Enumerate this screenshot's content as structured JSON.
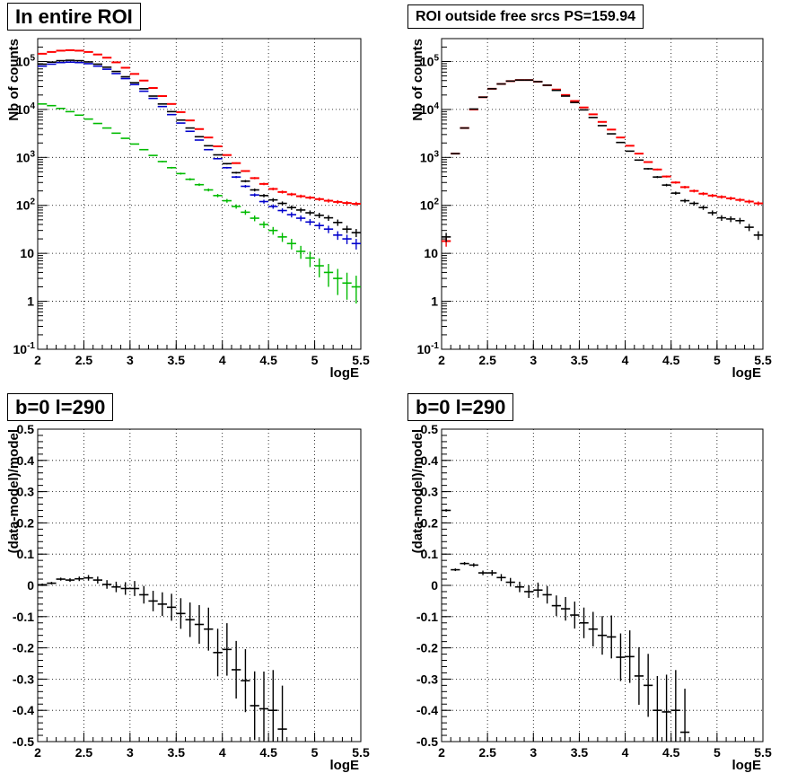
{
  "panels": [
    {
      "title": "In entire ROI",
      "xlabel": "logE",
      "ylabel": "Nb of counts"
    },
    {
      "title": "ROI outside free srcs PS=159.94",
      "xlabel": "logE",
      "ylabel": "Nb of counts"
    },
    {
      "title": "b=0 l=290",
      "xlabel": "logE",
      "ylabel": "(data-model)/model"
    },
    {
      "title": "b=0 l=290",
      "xlabel": "logE",
      "ylabel": "(data-model)/model"
    }
  ],
  "chart_data": [
    {
      "type": "scatter",
      "title": "In entire ROI",
      "xlabel": "logE",
      "ylabel": "Nb of counts",
      "xlim": [
        2,
        5.5
      ],
      "ylim": [
        0.1,
        300000
      ],
      "yscale": "log",
      "grid": true,
      "x_ticks": [
        "2",
        "2.5",
        "3",
        "3.5",
        "4",
        "4.5",
        "5",
        "5.5"
      ],
      "y_ticks": [
        "10^-1",
        "1",
        "10",
        "10^2",
        "10^3",
        "10^4",
        "10^5"
      ],
      "x": [
        2.05,
        2.15,
        2.25,
        2.35,
        2.45,
        2.55,
        2.65,
        2.75,
        2.85,
        2.95,
        3.05,
        3.15,
        3.25,
        3.35,
        3.45,
        3.55,
        3.65,
        3.75,
        3.85,
        3.95,
        4.05,
        4.15,
        4.25,
        4.35,
        4.45,
        4.55,
        4.65,
        4.75,
        4.85,
        4.95,
        5.05,
        5.15,
        5.25,
        5.35,
        5.45
      ],
      "series": [
        {
          "color": "#ff0000",
          "values": [
            145000,
            158000,
            168000,
            172000,
            168000,
            158000,
            140000,
            120000,
            96000,
            74000,
            55000,
            40000,
            28000,
            19000,
            13000,
            8800,
            5900,
            3900,
            2600,
            1700,
            1120,
            760,
            520,
            370,
            280,
            220,
            190,
            170,
            155,
            145,
            135,
            125,
            118,
            112,
            108
          ]
        },
        {
          "color": "#000000",
          "values": [
            88000,
            97000,
            104000,
            106000,
            104000,
            98000,
            88000,
            76000,
            62000,
            48000,
            36000,
            27000,
            19000,
            13000,
            9000,
            6000,
            4100,
            2700,
            1750,
            1130,
            740,
            480,
            320,
            210,
            160,
            130,
            110,
            90,
            80,
            70,
            62,
            55,
            44,
            32,
            27
          ]
        },
        {
          "color": "#0000cc",
          "values": [
            80000,
            88000,
            95000,
            97000,
            95000,
            90000,
            80000,
            69000,
            56000,
            44000,
            33000,
            24000,
            17000,
            11500,
            7800,
            5200,
            3500,
            2300,
            1450,
            940,
            610,
            390,
            250,
            165,
            120,
            95,
            78,
            64,
            54,
            45,
            38,
            32,
            24,
            20,
            16
          ]
        },
        {
          "color": "#00bb00",
          "values": [
            13000,
            12000,
            10500,
            9000,
            7600,
            6300,
            5100,
            4100,
            3200,
            2500,
            1900,
            1450,
            1100,
            820,
            610,
            460,
            350,
            270,
            210,
            160,
            125,
            95,
            72,
            54,
            40,
            30,
            22,
            16,
            11,
            8,
            5.5,
            4,
            3,
            2.4,
            2
          ]
        }
      ]
    },
    {
      "type": "scatter",
      "title": "ROI outside free srcs PS=159.94",
      "xlabel": "logE",
      "ylabel": "Nb of counts",
      "xlim": [
        2,
        5.5
      ],
      "ylim": [
        0.1,
        300000
      ],
      "yscale": "log",
      "grid": true,
      "x_ticks": [
        "2",
        "2.5",
        "3",
        "3.5",
        "4",
        "4.5",
        "5",
        "5.5"
      ],
      "y_ticks": [
        "10^-1",
        "1",
        "10",
        "10^2",
        "10^3",
        "10^4",
        "10^5"
      ],
      "x": [
        2.05,
        2.15,
        2.25,
        2.35,
        2.45,
        2.55,
        2.65,
        2.75,
        2.85,
        2.95,
        3.05,
        3.15,
        3.25,
        3.35,
        3.45,
        3.55,
        3.65,
        3.75,
        3.85,
        3.95,
        4.05,
        4.15,
        4.25,
        4.35,
        4.45,
        4.55,
        4.65,
        4.75,
        4.85,
        4.95,
        5.05,
        5.15,
        5.25,
        5.35,
        5.45
      ],
      "series": [
        {
          "color": "#ff0000",
          "values": [
            18,
            1200,
            4100,
            10000,
            18000,
            27000,
            34000,
            39000,
            41000,
            41000,
            38000,
            32000,
            26000,
            20000,
            15000,
            11000,
            7900,
            5500,
            3800,
            2600,
            1750,
            1200,
            800,
            560,
            400,
            300,
            240,
            200,
            175,
            160,
            150,
            140,
            130,
            120,
            110
          ]
        },
        {
          "color": "#000000",
          "values": [
            22,
            1200,
            4100,
            10200,
            18000,
            27000,
            34000,
            39000,
            41000,
            41000,
            38000,
            32000,
            25000,
            19000,
            14000,
            9800,
            6800,
            4600,
            3100,
            2050,
            1350,
            880,
            580,
            390,
            265,
            180,
            125,
            110,
            90,
            70,
            55,
            52,
            48,
            35,
            24
          ]
        }
      ]
    },
    {
      "type": "scatter",
      "title": "b=0 l=290",
      "xlabel": "logE",
      "ylabel": "(data-model)/model",
      "xlim": [
        2,
        5.5
      ],
      "ylim": [
        -0.5,
        0.5
      ],
      "grid": true,
      "x_ticks": [
        "2",
        "2.5",
        "3",
        "3.5",
        "4",
        "4.5",
        "5",
        "5.5"
      ],
      "y_ticks": [
        "-0.5",
        "-0.4",
        "-0.3",
        "-0.2",
        "-0.1",
        "0",
        "0.1",
        "0.2",
        "0.3",
        "0.4",
        "0.5"
      ],
      "x": [
        2.05,
        2.15,
        2.25,
        2.35,
        2.45,
        2.55,
        2.65,
        2.75,
        2.85,
        2.95,
        3.05,
        3.15,
        3.25,
        3.35,
        3.45,
        3.55,
        3.65,
        3.75,
        3.85,
        3.95,
        4.05,
        4.15,
        4.25,
        4.35,
        4.45,
        4.55,
        4.65
      ],
      "values": [
        0.002,
        0.007,
        0.02,
        0.017,
        0.021,
        0.024,
        0.017,
        0.003,
        -0.005,
        -0.01,
        -0.01,
        -0.03,
        -0.05,
        -0.06,
        -0.07,
        -0.09,
        -0.11,
        -0.125,
        -0.14,
        -0.215,
        -0.205,
        -0.27,
        -0.305,
        -0.385,
        -0.395,
        -0.4,
        -0.46
      ]
    },
    {
      "type": "scatter",
      "title": "b=0 l=290",
      "xlabel": "logE",
      "ylabel": "(data-model)/model",
      "xlim": [
        2,
        5.5
      ],
      "ylim": [
        -0.5,
        0.5
      ],
      "grid": true,
      "x_ticks": [
        "2",
        "2.5",
        "3",
        "3.5",
        "4",
        "4.5",
        "5",
        "5.5"
      ],
      "y_ticks": [
        "-0.5",
        "-0.4",
        "-0.3",
        "-0.2",
        "-0.1",
        "0",
        "0.1",
        "0.2",
        "0.3",
        "0.4",
        "0.5"
      ],
      "x": [
        2.05,
        2.15,
        2.25,
        2.35,
        2.45,
        2.55,
        2.65,
        2.75,
        2.85,
        2.95,
        3.05,
        3.15,
        3.25,
        3.35,
        3.45,
        3.55,
        3.65,
        3.75,
        3.85,
        3.95,
        4.05,
        4.15,
        4.25,
        4.35,
        4.45,
        4.55,
        4.65
      ],
      "values": [
        0.24,
        0.05,
        0.07,
        0.065,
        0.04,
        0.04,
        0.025,
        0.01,
        -0.005,
        -0.02,
        -0.015,
        -0.03,
        -0.065,
        -0.075,
        -0.095,
        -0.12,
        -0.14,
        -0.16,
        -0.165,
        -0.23,
        -0.228,
        -0.29,
        -0.32,
        -0.4,
        -0.405,
        -0.4,
        -0.47
      ]
    }
  ]
}
